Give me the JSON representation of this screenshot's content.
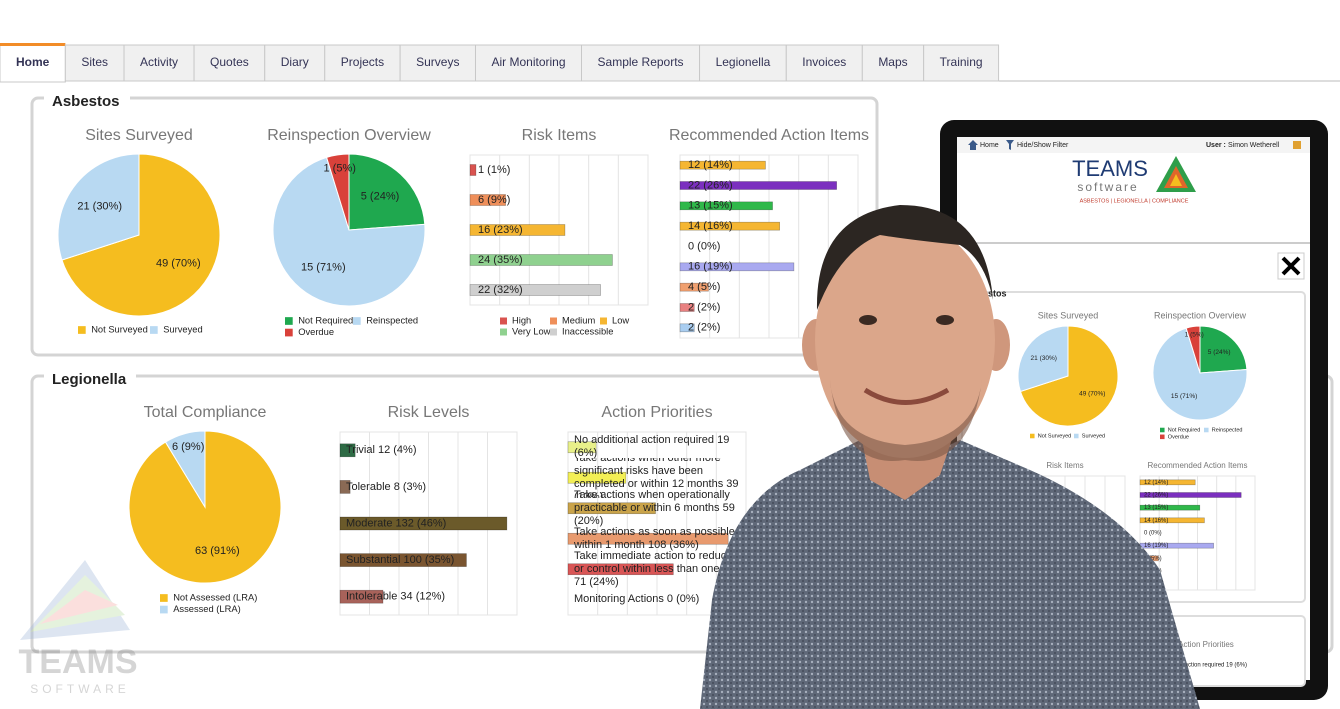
{
  "tabs": [
    "Home",
    "Sites",
    "Activity",
    "Quotes",
    "Diary",
    "Projects",
    "Surveys",
    "Air Monitoring",
    "Sample Reports",
    "Legionella",
    "Invoices",
    "Maps",
    "Training"
  ],
  "active_tab_index": 0,
  "asbestos": {
    "title": "Asbestos",
    "charts": [
      {
        "type": "pie",
        "title": "Sites Surveyed",
        "categories": [
          "Not Surveyed",
          "Surveyed"
        ],
        "values": [
          49,
          21
        ],
        "value_labels": [
          "49 (70%)",
          "21 (30%)"
        ],
        "colors": [
          "#f5bd1f",
          "#b8d9f2"
        ]
      },
      {
        "type": "pie",
        "title": "Reinspection Overview",
        "categories": [
          "Not Required",
          "Reinspected",
          "Overdue"
        ],
        "values": [
          5,
          15,
          1
        ],
        "value_labels": [
          "5 (24%)",
          "15 (71%)",
          "1 (5%)"
        ],
        "colors": [
          "#1fa84f",
          "#b8d9f2",
          "#d9413a"
        ]
      },
      {
        "type": "bar",
        "title": "Risk Items",
        "categories": [
          "High",
          "Medium",
          "Low",
          "Very Low",
          "Inaccessible"
        ],
        "values": [
          1,
          6,
          16,
          24,
          22
        ],
        "value_labels": [
          "1 (1%)",
          "6 (9%)",
          "16 (23%)",
          "24 (35%)",
          "22 (32%)"
        ],
        "colors": [
          "#d9534f",
          "#ef8f5a",
          "#f5b632",
          "#8fd18f",
          "#cfcfcf"
        ],
        "xlim": [
          0,
          30
        ]
      },
      {
        "type": "bar",
        "title": "Recommended Action Items",
        "values": [
          12,
          22,
          13,
          14,
          0,
          16,
          4,
          2,
          2
        ],
        "value_labels": [
          "12 (14%)",
          "22 (26%)",
          "13 (15%)",
          "14 (16%)",
          "0 (0%)",
          "16 (19%)",
          "4 (5%)",
          "2 (2%)",
          "2 (2%)"
        ],
        "colors": [
          "#f5b632",
          "#7b2fbf",
          "#2fb84a",
          "#f5b632",
          "#cccccc",
          "#a9a9f0",
          "#f0a070",
          "#e88080",
          "#a9cdf0"
        ],
        "xlim": [
          0,
          25
        ]
      }
    ]
  },
  "legionella": {
    "title": "Legionella",
    "charts": [
      {
        "type": "pie",
        "title": "Total Compliance",
        "categories": [
          "Not Assessed (LRA)",
          "Assessed (LRA)"
        ],
        "values": [
          63,
          6
        ],
        "value_labels": [
          "63 (91%)",
          "6 (9%)"
        ],
        "colors": [
          "#f5bd1f",
          "#b8d9f2"
        ]
      },
      {
        "type": "bar",
        "title": "Risk Levels",
        "values": [
          12,
          8,
          132,
          100,
          34
        ],
        "value_labels": [
          "Trivial 12 (4%)",
          "Tolerable 8 (3%)",
          "Moderate 132 (46%)",
          "Substantial 100 (35%)",
          "Intolerable 34 (12%)"
        ],
        "colors": [
          "#2e6b45",
          "#8a6a55",
          "#6b5a2a",
          "#7a5530",
          "#a8625a"
        ],
        "xlim": [
          0,
          140
        ]
      },
      {
        "type": "bar",
        "title": "Action Priorities",
        "values": [
          19,
          39,
          59,
          108,
          71,
          0
        ],
        "value_labels": [
          "No additional action required 19 (6%)",
          "Take actions when other more significant risks have been completed or within 12 months 39 (13%)",
          "Take actions when operationally practicable or within 6 months 59 (20%)",
          "Take actions as soon as possible or within 1 month 108 (36%)",
          "Take immediate action to reduce risk or control within less than one month 71 (24%)",
          "Monitoring Actions 0 (0%)"
        ],
        "colors": [
          "#e8f08a",
          "#f3ef55",
          "#c9a34a",
          "#e89a6e",
          "#d95555",
          "#cccccc"
        ],
        "xlim": [
          0,
          120
        ]
      }
    ]
  },
  "tablet": {
    "nav_home": "Home",
    "nav_filter": "Hide/Show Filter",
    "user_label": "User :",
    "user_name": "Simon Wetherell",
    "logo_name": "TEAMS",
    "logo_sub": "software",
    "logo_tagline": "ASBESTOS | LEGIONELLA | COMPLIANCE"
  },
  "watermark": {
    "name": "TEAMS",
    "sub": "SOFTWARE"
  }
}
